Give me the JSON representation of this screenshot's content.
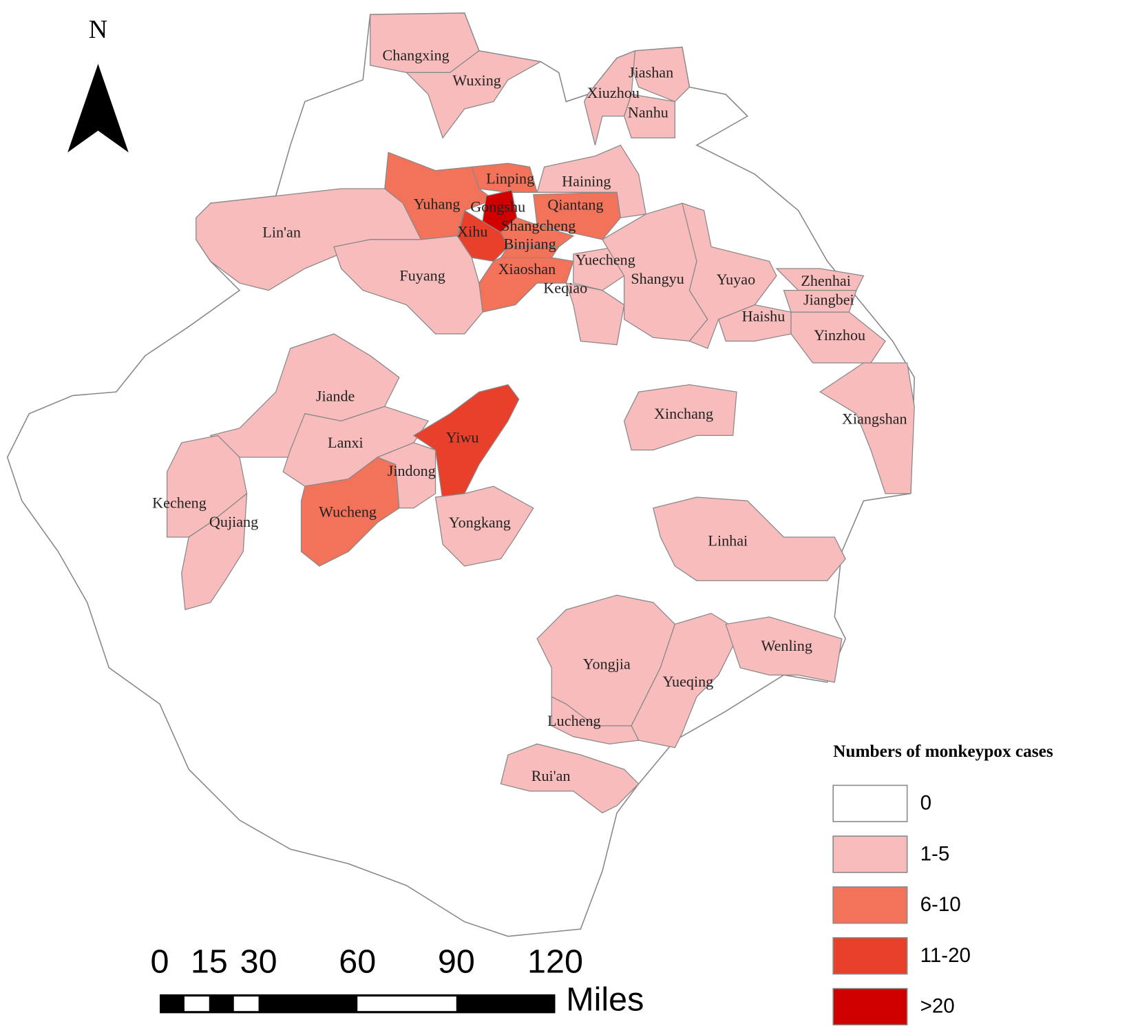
{
  "north": "N",
  "legend": {
    "title": "Numbers of monkeypox cases",
    "classes": [
      {
        "label": "0",
        "color": "#ffffff"
      },
      {
        "label": "1-5",
        "color": "#f9bcbc"
      },
      {
        "label": "6-10",
        "color": "#f3735a"
      },
      {
        "label": "11-20",
        "color": "#e8402b"
      },
      {
        "label": ">20",
        "color": "#d10000"
      }
    ]
  },
  "scale_bar": {
    "ticks": [
      0,
      15,
      30,
      60,
      90,
      120
    ],
    "unit": "Miles"
  },
  "regions": [
    {
      "name": "Changxing",
      "class": 1
    },
    {
      "name": "Wuxing",
      "class": 1
    },
    {
      "name": "Jiashan",
      "class": 1
    },
    {
      "name": "Xiuzhou",
      "class": 1
    },
    {
      "name": "Nanhu",
      "class": 1
    },
    {
      "name": "Linping",
      "class": 2
    },
    {
      "name": "Haining",
      "class": 1
    },
    {
      "name": "Yuhang",
      "class": 2
    },
    {
      "name": "Qiantang",
      "class": 2
    },
    {
      "name": "Shangcheng",
      "class": 2
    },
    {
      "name": "Xihu",
      "class": 3
    },
    {
      "name": "Gongshu",
      "class": 4
    },
    {
      "name": "Binjiang",
      "class": 2
    },
    {
      "name": "Xiaoshan",
      "class": 2
    },
    {
      "name": "Lin'an",
      "class": 1
    },
    {
      "name": "Fuyang",
      "class": 1
    },
    {
      "name": "Yuecheng",
      "class": 1
    },
    {
      "name": "Keqiao",
      "class": 1
    },
    {
      "name": "Shangyu",
      "class": 1
    },
    {
      "name": "Yuyao",
      "class": 1
    },
    {
      "name": "Zhenhai",
      "class": 1
    },
    {
      "name": "Jiangbei",
      "class": 1
    },
    {
      "name": "Haishu",
      "class": 1
    },
    {
      "name": "Yinzhou",
      "class": 1
    },
    {
      "name": "Xiangshan",
      "class": 1
    },
    {
      "name": "Jiande",
      "class": 1
    },
    {
      "name": "Lanxi",
      "class": 1
    },
    {
      "name": "Kecheng",
      "class": 1
    },
    {
      "name": "Qujiang",
      "class": 1
    },
    {
      "name": "Wucheng",
      "class": 2
    },
    {
      "name": "Jindong",
      "class": 1
    },
    {
      "name": "Yiwu",
      "class": 3
    },
    {
      "name": "Yongkang",
      "class": 1
    },
    {
      "name": "Xinchang",
      "class": 1
    },
    {
      "name": "Linhai",
      "class": 1
    },
    {
      "name": "Yongjia",
      "class": 1
    },
    {
      "name": "Yueqing",
      "class": 1
    },
    {
      "name": "Wenling",
      "class": 1
    },
    {
      "name": "Lucheng",
      "class": 1
    },
    {
      "name": "Rui'an",
      "class": 1
    }
  ]
}
